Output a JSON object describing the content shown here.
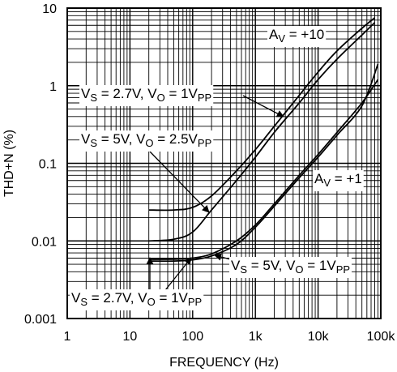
{
  "chart_data": {
    "type": "line",
    "title": "",
    "xlabel": "FREQUENCY (Hz)",
    "ylabel": "THD+N (%)",
    "x_scale": "log",
    "y_scale": "log",
    "xlim": [
      1,
      100000
    ],
    "ylim": [
      0.001,
      10
    ],
    "x_ticks": [
      "1",
      "10",
      "100",
      "1k",
      "10k",
      "100k"
    ],
    "y_ticks": [
      "0.001",
      "0.01",
      "0.1",
      "1",
      "10"
    ],
    "grid": true,
    "series": [
      {
        "x": [
          20,
          50,
          100,
          200,
          500,
          1000,
          2000,
          5000,
          10000,
          20000,
          50000,
          80000
        ],
        "y": [
          0.025,
          0.025,
          0.027,
          0.038,
          0.08,
          0.15,
          0.3,
          0.75,
          1.5,
          2.8,
          5.5,
          7.5
        ]
      },
      {
        "x": [
          20,
          50,
          100,
          200,
          500,
          1000,
          2000,
          5000,
          10000,
          20000,
          50000,
          80000
        ],
        "y": [
          0.01,
          0.0105,
          0.013,
          0.025,
          0.06,
          0.12,
          0.25,
          0.6,
          1.2,
          2.2,
          4.5,
          6.5
        ]
      },
      {
        "x": [
          20,
          50,
          100,
          200,
          500,
          1000,
          2000,
          5000,
          10000,
          20000,
          50000,
          90000
        ],
        "y": [
          0.0058,
          0.0058,
          0.006,
          0.0068,
          0.01,
          0.016,
          0.03,
          0.07,
          0.13,
          0.25,
          0.6,
          1.2
        ]
      },
      {
        "x": [
          20,
          50,
          100,
          200,
          500,
          1000,
          2000,
          5000,
          10000,
          20000,
          50000,
          90000
        ],
        "y": [
          0.0055,
          0.0055,
          0.0057,
          0.0064,
          0.009,
          0.015,
          0.028,
          0.065,
          0.12,
          0.23,
          0.55,
          1.9
        ]
      }
    ],
    "annotations": [
      {
        "parts": [
          {
            "t": "A"
          },
          {
            "t": "V",
            "sub": true
          },
          {
            "t": " = +10"
          }
        ]
      },
      {
        "parts": [
          {
            "t": "V"
          },
          {
            "t": "S",
            "sub": true
          },
          {
            "t": " = 2.7V, V"
          },
          {
            "t": "O",
            "sub": true
          },
          {
            "t": " = 1V"
          },
          {
            "t": "PP",
            "sub": true
          }
        ]
      },
      {
        "parts": [
          {
            "t": "V"
          },
          {
            "t": "S",
            "sub": true
          },
          {
            "t": " = 5V, V"
          },
          {
            "t": "O",
            "sub": true
          },
          {
            "t": " = 2.5V"
          },
          {
            "t": "PP",
            "sub": true
          }
        ]
      },
      {
        "parts": [
          {
            "t": "A"
          },
          {
            "t": "V",
            "sub": true
          },
          {
            "t": " = +1"
          }
        ]
      },
      {
        "parts": [
          {
            "t": "V"
          },
          {
            "t": "S",
            "sub": true
          },
          {
            "t": " = 5V, V"
          },
          {
            "t": "O",
            "sub": true
          },
          {
            "t": " = 1V"
          },
          {
            "t": "PP",
            "sub": true
          }
        ]
      },
      {
        "parts": [
          {
            "t": "V"
          },
          {
            "t": "S",
            "sub": true
          },
          {
            "t": " = 2.7V, V"
          },
          {
            "t": "O",
            "sub": true
          },
          {
            "t": " = 1V"
          },
          {
            "t": "PP",
            "sub": true
          }
        ]
      }
    ],
    "colors": {
      "line": "#000000",
      "grid": "#000000",
      "background": "#ffffff"
    }
  }
}
